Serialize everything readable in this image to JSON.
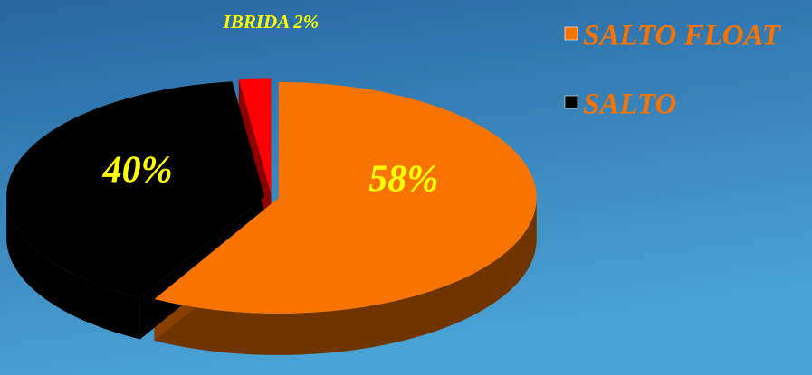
{
  "chart_data": {
    "type": "pie3d",
    "categories": [
      "SALTO FLOAT",
      "SALTO",
      null
    ],
    "values": [
      58,
      40,
      2
    ],
    "value_labels": [
      "58%",
      "40%",
      "IBRIDA 2%"
    ],
    "colors": [
      "#f97300",
      "#000000",
      "#ff0000"
    ],
    "legend": "top-right"
  }
}
